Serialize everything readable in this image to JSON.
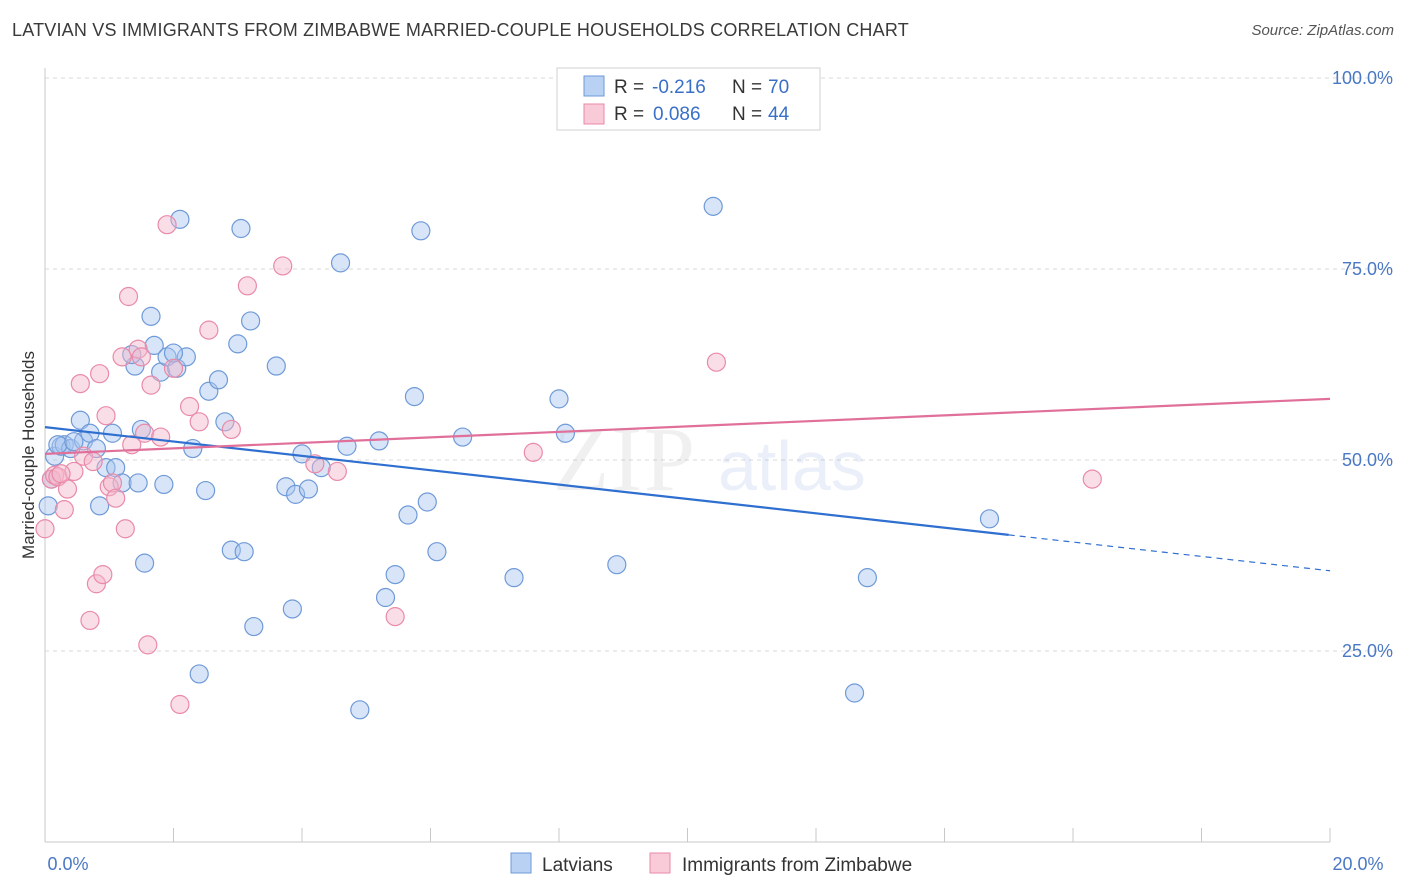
{
  "title": "LATVIAN VS IMMIGRANTS FROM ZIMBABWE MARRIED-COUPLE HOUSEHOLDS CORRELATION CHART",
  "source": "Source: ZipAtlas.com",
  "watermark": {
    "part1": "ZIP",
    "part2": "atlas"
  },
  "colors": {
    "blue_fill": "#a9c6ef",
    "blue_stroke": "#6f9ad8",
    "blue_line": "#2f6fd0",
    "pink_fill": "#f5b6ca",
    "pink_stroke": "#e98aa9",
    "pink_line": "#e0709a",
    "tick_label": "#4a78c4",
    "grid": "#d9d9d9"
  },
  "chart_data": {
    "type": "scatter",
    "title": "LATVIAN VS IMMIGRANTS FROM ZIMBABWE MARRIED-COUPLE HOUSEHOLDS CORRELATION CHART",
    "xlabel": "",
    "ylabel": "Married-couple Households",
    "xlim": [
      0,
      20
    ],
    "ylim": [
      0,
      100
    ],
    "x_tick_labels": [
      "0.0%",
      "20.0%"
    ],
    "y_ticks": [
      25,
      50,
      75,
      100
    ],
    "y_tick_labels": [
      "25.0%",
      "50.0%",
      "75.0%",
      "100.0%"
    ],
    "legend": {
      "position": "top-center",
      "entries": [
        {
          "r_label": "R =",
          "r_value": "-0.216",
          "n_label": "N =",
          "n_value": "70"
        },
        {
          "r_label": "R =",
          "r_value": "0.086",
          "n_label": "N =",
          "n_value": "44"
        }
      ]
    },
    "bottom_legend": [
      "Latvians",
      "Immigrants from Zimbabwe"
    ],
    "series": [
      {
        "name": "Latvians",
        "trend": {
          "x0": 0,
          "y0": 54.3,
          "x1": 15.0,
          "y1": 40.2,
          "dash_to_x": 20.0,
          "dash_to_y": 35.5
        },
        "points": [
          [
            0.05,
            44.0
          ],
          [
            0.1,
            47.5
          ],
          [
            0.15,
            50.5
          ],
          [
            0.25,
            51.8
          ],
          [
            0.3,
            52.0
          ],
          [
            0.4,
            51.5
          ],
          [
            0.55,
            55.2
          ],
          [
            0.6,
            52.5
          ],
          [
            0.7,
            53.5
          ],
          [
            0.8,
            51.5
          ],
          [
            0.85,
            44.0
          ],
          [
            0.95,
            49.0
          ],
          [
            1.05,
            53.5
          ],
          [
            1.1,
            49.0
          ],
          [
            1.2,
            47.0
          ],
          [
            1.4,
            62.3
          ],
          [
            1.45,
            47.0
          ],
          [
            1.5,
            54.0
          ],
          [
            1.55,
            36.5
          ],
          [
            1.65,
            68.8
          ],
          [
            1.7,
            65.0
          ],
          [
            1.8,
            61.5
          ],
          [
            1.85,
            46.8
          ],
          [
            1.9,
            63.5
          ],
          [
            2.05,
            62.0
          ],
          [
            2.1,
            81.5
          ],
          [
            2.2,
            63.5
          ],
          [
            2.3,
            51.5
          ],
          [
            2.4,
            22.0
          ],
          [
            2.5,
            46.0
          ],
          [
            2.55,
            59.0
          ],
          [
            2.7,
            60.5
          ],
          [
            2.8,
            55.0
          ],
          [
            2.9,
            38.2
          ],
          [
            3.0,
            65.2
          ],
          [
            3.05,
            80.3
          ],
          [
            3.1,
            38.0
          ],
          [
            3.2,
            68.2
          ],
          [
            3.25,
            28.2
          ],
          [
            3.6,
            62.3
          ],
          [
            3.75,
            46.5
          ],
          [
            3.85,
            30.5
          ],
          [
            3.9,
            45.5
          ],
          [
            4.0,
            50.8
          ],
          [
            4.1,
            46.2
          ],
          [
            4.3,
            49.0
          ],
          [
            4.6,
            75.8
          ],
          [
            4.7,
            51.8
          ],
          [
            4.9,
            17.3
          ],
          [
            5.2,
            52.5
          ],
          [
            5.3,
            32.0
          ],
          [
            5.45,
            35.0
          ],
          [
            5.65,
            42.8
          ],
          [
            5.75,
            58.3
          ],
          [
            5.85,
            80.0
          ],
          [
            5.95,
            44.5
          ],
          [
            6.1,
            38.0
          ],
          [
            6.5,
            53.0
          ],
          [
            7.3,
            34.6
          ],
          [
            8.0,
            58.0
          ],
          [
            8.1,
            53.5
          ],
          [
            8.9,
            36.3
          ],
          [
            10.4,
            83.2
          ],
          [
            12.6,
            19.5
          ],
          [
            12.8,
            34.6
          ],
          [
            14.7,
            42.3
          ],
          [
            0.2,
            52.0
          ],
          [
            0.45,
            52.4
          ],
          [
            1.35,
            63.8
          ],
          [
            2.0,
            64.0
          ]
        ]
      },
      {
        "name": "Immigrants from Zimbabwe",
        "trend": {
          "x0": 0,
          "y0": 50.8,
          "x1": 20.0,
          "y1": 58.0
        },
        "points": [
          [
            0.0,
            41.0
          ],
          [
            0.1,
            47.5
          ],
          [
            0.15,
            48.0
          ],
          [
            0.2,
            47.8
          ],
          [
            0.3,
            43.5
          ],
          [
            0.35,
            46.2
          ],
          [
            0.45,
            48.5
          ],
          [
            0.55,
            60.0
          ],
          [
            0.6,
            50.5
          ],
          [
            0.7,
            29.0
          ],
          [
            0.75,
            49.8
          ],
          [
            0.8,
            33.8
          ],
          [
            0.85,
            61.3
          ],
          [
            0.9,
            35.0
          ],
          [
            0.95,
            55.8
          ],
          [
            1.0,
            46.5
          ],
          [
            1.05,
            47.0
          ],
          [
            1.1,
            45.0
          ],
          [
            1.2,
            63.5
          ],
          [
            1.25,
            41.0
          ],
          [
            1.3,
            71.4
          ],
          [
            1.35,
            52.0
          ],
          [
            1.45,
            64.5
          ],
          [
            1.5,
            63.5
          ],
          [
            1.55,
            53.5
          ],
          [
            1.6,
            25.8
          ],
          [
            1.65,
            59.8
          ],
          [
            1.8,
            53.0
          ],
          [
            1.9,
            80.8
          ],
          [
            2.0,
            62.0
          ],
          [
            2.1,
            18.0
          ],
          [
            2.25,
            57.0
          ],
          [
            2.4,
            55.0
          ],
          [
            2.55,
            67.0
          ],
          [
            2.9,
            54.0
          ],
          [
            3.15,
            72.8
          ],
          [
            3.7,
            75.4
          ],
          [
            4.2,
            49.5
          ],
          [
            4.55,
            48.5
          ],
          [
            5.45,
            29.5
          ],
          [
            7.6,
            51.0
          ],
          [
            10.45,
            62.8
          ],
          [
            16.3,
            47.5
          ],
          [
            0.25,
            48.2
          ]
        ]
      }
    ]
  }
}
